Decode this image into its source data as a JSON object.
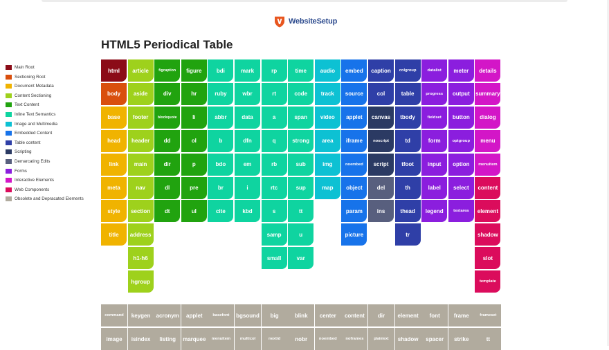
{
  "brand": {
    "name": "WebsiteSetup",
    "icon": "shield-logo-icon",
    "color": "#e8561f"
  },
  "page": {
    "title": "HTML5 Periodical Table"
  },
  "categories": {
    "main": {
      "label": "Main Root",
      "color": "#8b0c18"
    },
    "section": {
      "label": "Sectioning Root",
      "color": "#d94f0d"
    },
    "meta": {
      "label": "Document Metadata",
      "color": "#f0b300"
    },
    "content": {
      "label": "Content Sectioning",
      "color": "#9ed11c"
    },
    "text": {
      "label": "Text Content",
      "color": "#21a30f"
    },
    "inline": {
      "label": "Inline Text Semantics",
      "color": "#0fd4a0"
    },
    "media": {
      "label": "Image and Multimedia",
      "color": "#0dc1d3"
    },
    "embed": {
      "label": "Embedded Content",
      "color": "#1773ea"
    },
    "table": {
      "label": "Table content",
      "color": "#2f3fa7"
    },
    "script": {
      "label": "Scripting",
      "color": "#2b3a63"
    },
    "edits": {
      "label": "Demarcating Edits",
      "color": "#585f7e"
    },
    "forms": {
      "label": "Forms",
      "color": "#8b1ede"
    },
    "interactive": {
      "label": "Interactive Elements",
      "color": "#d316c7"
    },
    "web": {
      "label": "Web Components",
      "color": "#db0c5c"
    },
    "obsolete": {
      "label": "Obsolete and Depracated Elements",
      "color": "#b1ab9e"
    }
  },
  "legend_order": [
    "main",
    "section",
    "meta",
    "content",
    "text",
    "inline",
    "media",
    "embed",
    "table",
    "script",
    "edits",
    "forms",
    "interactive",
    "web",
    "obsolete"
  ],
  "columns": [
    {
      "cat": [
        "main",
        "section",
        "meta",
        "meta",
        "meta",
        "meta",
        "meta",
        "meta"
      ],
      "tags": [
        "html",
        "body",
        "base",
        "head",
        "link",
        "meta",
        "style",
        "title"
      ]
    },
    {
      "cat": [
        "content",
        "content",
        "content",
        "content",
        "content",
        "content",
        "content",
        "content",
        "content",
        "content"
      ],
      "tags": [
        "article",
        "aside",
        "footer",
        "header",
        "main",
        "nav",
        "section",
        "address",
        "h1-h6",
        "hgroup"
      ]
    },
    {
      "cat": [
        "text",
        "text",
        "text",
        "text",
        "text",
        "text",
        "text"
      ],
      "tags": [
        "figcaption",
        "div",
        "blockquote",
        "dd",
        "dir",
        "dl",
        "dt"
      ]
    },
    {
      "cat": [
        "text",
        "text",
        "text",
        "text",
        "text",
        "text",
        "text"
      ],
      "tags": [
        "figure",
        "hr",
        "li",
        "ol",
        "p",
        "pre",
        "ul"
      ]
    },
    {
      "cat": [
        "inline",
        "inline",
        "inline",
        "inline",
        "inline",
        "inline",
        "inline"
      ],
      "tags": [
        "bdi",
        "ruby",
        "abbr",
        "b",
        "bdo",
        "br",
        "cite"
      ]
    },
    {
      "cat": [
        "inline",
        "inline",
        "inline",
        "inline",
        "inline",
        "inline",
        "inline"
      ],
      "tags": [
        "mark",
        "wbr",
        "data",
        "dfn",
        "em",
        "i",
        "kbd"
      ]
    },
    {
      "cat": [
        "inline",
        "inline",
        "inline",
        "inline",
        "inline",
        "inline",
        "inline",
        "inline",
        "inline"
      ],
      "tags": [
        "rp",
        "rt",
        "a",
        "q",
        "rb",
        "rtc",
        "s",
        "samp",
        "small"
      ]
    },
    {
      "cat": [
        "inline",
        "inline",
        "inline",
        "inline",
        "inline",
        "inline",
        "inline",
        "inline",
        "inline"
      ],
      "tags": [
        "time",
        "code",
        "span",
        "strong",
        "sub",
        "sup",
        "tt",
        "u",
        "var"
      ]
    },
    {
      "cat": [
        "media",
        "media",
        "media",
        "media",
        "media",
        "media"
      ],
      "tags": [
        "audio",
        "track",
        "video",
        "area",
        "img",
        "map"
      ]
    },
    {
      "cat": [
        "embed",
        "embed",
        "embed",
        "embed",
        "embed",
        "embed",
        "embed",
        "embed"
      ],
      "tags": [
        "embed",
        "source",
        "applet",
        "iframe",
        "noembed",
        "object",
        "param",
        "picture"
      ]
    },
    {
      "cat": [
        "table",
        "table",
        "script",
        "script",
        "script",
        "edits",
        "edits"
      ],
      "tags": [
        "caption",
        "col",
        "canvas",
        "noscript",
        "script",
        "del",
        "ins"
      ]
    },
    {
      "cat": [
        "table",
        "table",
        "table",
        "table",
        "table",
        "table",
        "table",
        "table"
      ],
      "tags": [
        "colgroup",
        "table",
        "tbody",
        "td",
        "tfoot",
        "th",
        "thead",
        "tr"
      ]
    },
    {
      "cat": [
        "forms",
        "forms",
        "forms",
        "forms",
        "forms",
        "forms",
        "forms"
      ],
      "tags": [
        "datalist",
        "progress",
        "fieldset",
        "form",
        "input",
        "label",
        "legend"
      ]
    },
    {
      "cat": [
        "forms",
        "forms",
        "forms",
        "forms",
        "forms",
        "forms",
        "forms"
      ],
      "tags": [
        "meter",
        "output",
        "button",
        "optgroup",
        "option",
        "select",
        "textarea"
      ]
    },
    {
      "cat": [
        "interactive",
        "interactive",
        "interactive",
        "interactive",
        "interactive",
        "web",
        "web",
        "web",
        "web",
        "web"
      ],
      "tags": [
        "details",
        "summary",
        "dialog",
        "menu",
        "menuitem",
        "content",
        "element",
        "shadow",
        "slot",
        "template"
      ]
    }
  ],
  "obsolete_rows": [
    [
      "command",
      "keygen",
      "acronym",
      "applet",
      "basefont",
      "bgsound",
      "big",
      "blink",
      "center",
      "content",
      "dir",
      "element",
      "font",
      "frame",
      "frameset"
    ],
    [
      "image",
      "isindex",
      "listing",
      "marquee",
      "menuitem",
      "multicol",
      "nextid",
      "nobr",
      "noembed",
      "noframes",
      "plaintext",
      "shadow",
      "spacer",
      "strike",
      "tt"
    ]
  ]
}
